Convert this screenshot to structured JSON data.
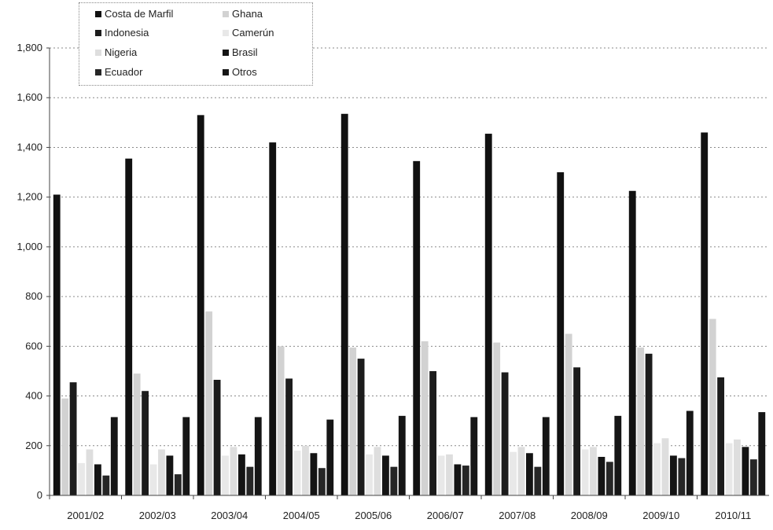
{
  "chart_data": {
    "type": "bar",
    "title": "",
    "xlabel": "",
    "ylabel": "",
    "ylim": [
      0,
      1800
    ],
    "yticks": [
      0,
      200,
      400,
      600,
      800,
      1000,
      1200,
      1400,
      1600,
      1800
    ],
    "ytick_labels": [
      "0",
      "200",
      "400",
      "600",
      "800",
      "1,000",
      "1,200",
      "1,400",
      "1,600",
      "1,800"
    ],
    "grid": true,
    "legend_position": "top-left",
    "categories": [
      "2001/02",
      "2002/03",
      "2003/04",
      "2004/05",
      "2005/06",
      "2006/07",
      "2007/08",
      "2008/09",
      "2009/10",
      "2010/11"
    ],
    "series": [
      {
        "name": "Costa de Marfil",
        "color": "#111111",
        "values": [
          1210,
          1355,
          1530,
          1420,
          1535,
          1345,
          1455,
          1300,
          1225,
          1460
        ]
      },
      {
        "name": "Ghana",
        "color": "#d2d2d2",
        "values": [
          390,
          490,
          740,
          600,
          595,
          620,
          615,
          650,
          595,
          710
        ]
      },
      {
        "name": "Indonesia",
        "color": "#1c1c1c",
        "values": [
          455,
          420,
          465,
          470,
          550,
          500,
          495,
          515,
          570,
          475
        ]
      },
      {
        "name": "Camerún",
        "color": "#e8e8e8",
        "values": [
          130,
          125,
          160,
          180,
          165,
          160,
          175,
          185,
          210,
          210
        ]
      },
      {
        "name": "Nigeria",
        "color": "#dedede",
        "values": [
          185,
          185,
          195,
          200,
          195,
          165,
          195,
          195,
          230,
          225
        ]
      },
      {
        "name": "Brasil",
        "color": "#141414",
        "values": [
          125,
          160,
          165,
          170,
          160,
          125,
          170,
          155,
          160,
          195
        ]
      },
      {
        "name": "Ecuador",
        "color": "#262626",
        "values": [
          80,
          85,
          115,
          110,
          115,
          120,
          115,
          135,
          150,
          145
        ]
      },
      {
        "name": "Otros",
        "color": "#161616",
        "values": [
          315,
          315,
          315,
          305,
          320,
          315,
          315,
          320,
          340,
          335
        ]
      }
    ]
  },
  "legend": {
    "items": [
      {
        "label": "Costa de Marfil",
        "color": "#111111"
      },
      {
        "label": "Ghana",
        "color": "#d2d2d2"
      },
      {
        "label": "Indonesia",
        "color": "#1c1c1c"
      },
      {
        "label": "Camerún",
        "color": "#e8e8e8"
      },
      {
        "label": "Nigeria",
        "color": "#dedede"
      },
      {
        "label": "Brasil",
        "color": "#141414"
      },
      {
        "label": "Ecuador",
        "color": "#262626"
      },
      {
        "label": "Otros",
        "color": "#161616"
      }
    ]
  }
}
